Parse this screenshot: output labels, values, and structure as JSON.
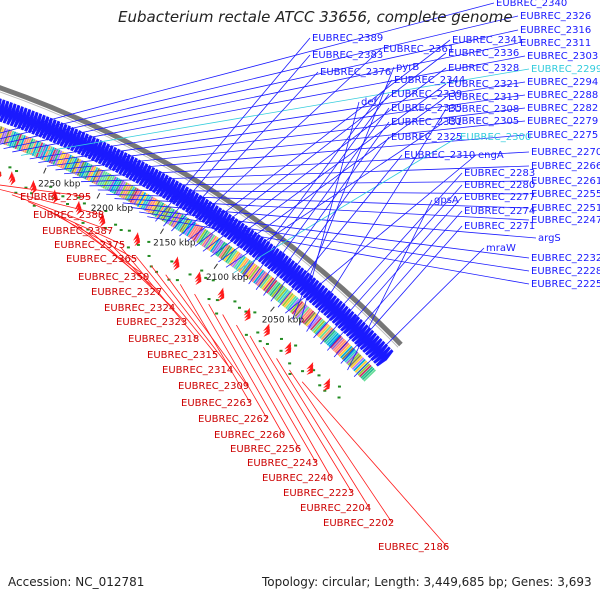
{
  "title": "Eubacterium rectale ATCC 33656, complete genome",
  "accession": "Accession: NC_012781",
  "topology": "Topology: circular; Length: 3,449,685 bp; Genes: 3,693",
  "colors": {
    "forward": "#1a1aff",
    "reverse": "#ff1a1a",
    "highlight": "#33ccdd",
    "ring": "#777777",
    "gc": "#228b22"
  },
  "ticks": [
    "2250 kbp",
    "2200 kbp",
    "2150 kbp",
    "2100 kbp",
    "2050 kbp"
  ],
  "blue_labels": [
    "EUBREC_2340",
    "EUBREC_2326",
    "EUBREC_2316",
    "EUBREC_2311",
    "EUBREC_2303",
    "EUBREC_2299",
    "EUBREC_2294",
    "EUBREC_2288",
    "EUBREC_2282",
    "EUBREC_2279",
    "EUBREC_2275",
    "EUBREC_2270",
    "EUBREC_2266",
    "EUBREC_2261",
    "EUBREC_2255",
    "EUBREC_2251",
    "EUBREC_2247",
    "argS",
    "EUBREC_2232",
    "EUBREC_2228",
    "EUBREC_2225",
    "EUBREC_2389",
    "EUBREC_2383",
    "EUBREC_2376",
    "EUBREC_2361",
    "EUBREC_2341",
    "EUBREC_2336",
    "EUBREC_2328",
    "EUBREC_2321",
    "EUBREC_2313",
    "EUBREC_2305",
    "EUBREC_2300",
    "EUBREC_2344",
    "EUBREC_2339",
    "EUBREC_2335",
    "EUBREC_2331",
    "EUBREC_2325",
    "EUBREC_2310",
    "engA",
    "pyrB",
    "def",
    "EUBREC_2308",
    "EUBREC_2283",
    "EUBREC_2280",
    "EUBREC_2277",
    "EUBREC_2274",
    "EUBREC_2271",
    "gpsA",
    "mraW"
  ],
  "red_labels": [
    "EUBREC_2395",
    "EUBREC_2388",
    "EUBREC_2387",
    "EUBREC_2375",
    "EUBREC_2365",
    "EUBREC_2350",
    "EUBREC_2327",
    "EUBREC_2324",
    "EUBREC_2323",
    "EUBREC_2318",
    "EUBREC_2315",
    "EUBREC_2314",
    "EUBREC_2309",
    "EUBREC_2263",
    "EUBREC_2262",
    "EUBREC_2260",
    "EUBREC_2256",
    "EUBREC_2243",
    "EUBREC_2240",
    "EUBREC_2223",
    "EUBREC_2204",
    "EUBREC_2202",
    "EUBREC_2186"
  ]
}
